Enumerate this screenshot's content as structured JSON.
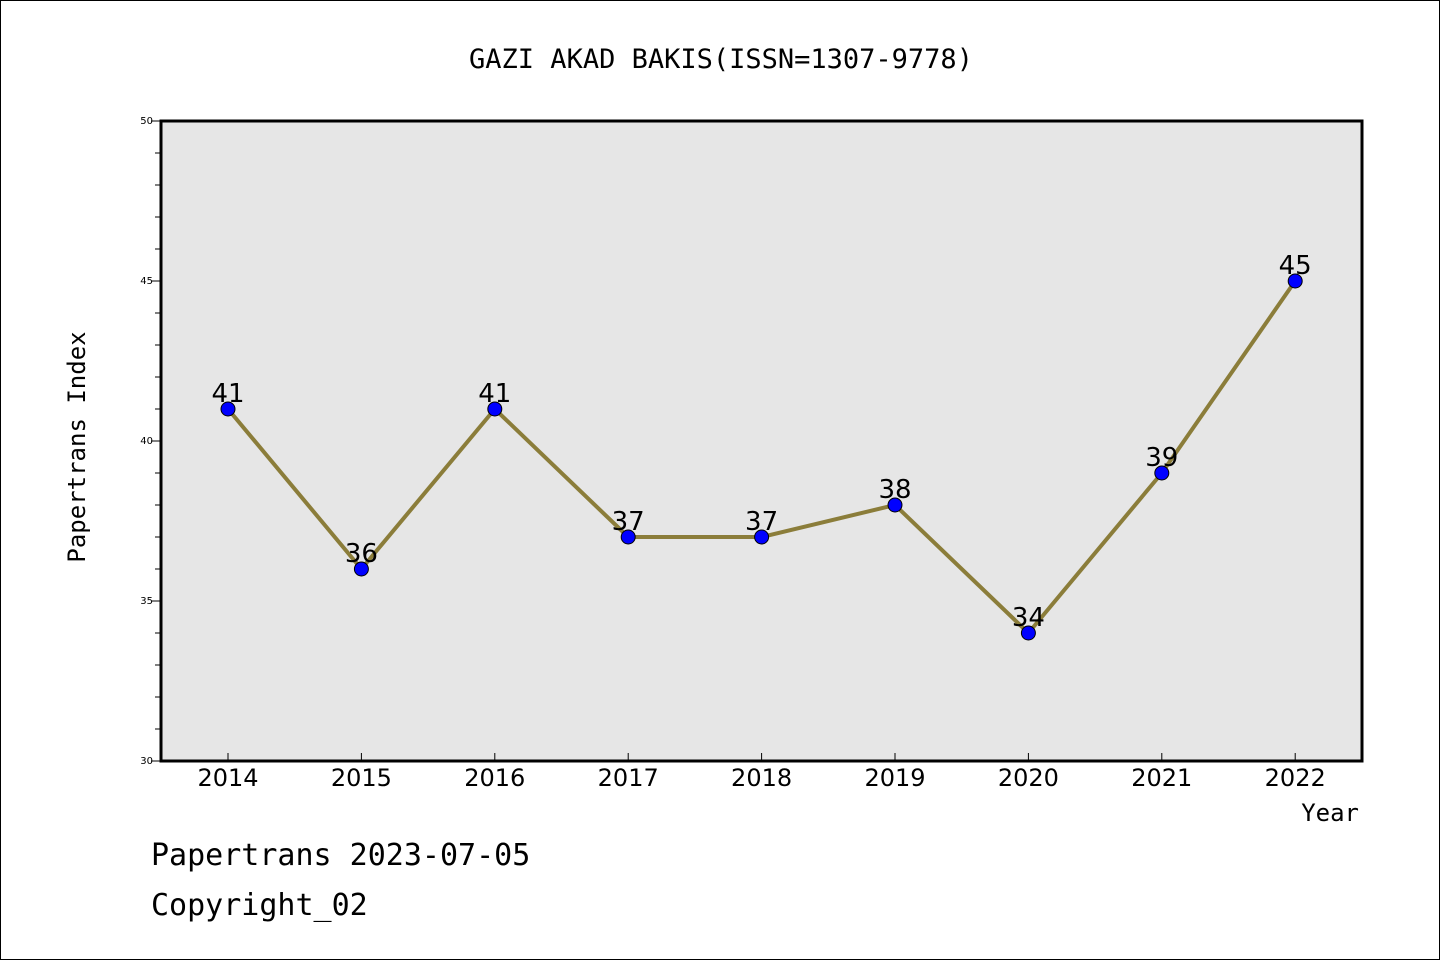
{
  "chart_data": {
    "type": "line",
    "title": "GAZI AKAD BAKIS(ISSN=1307-9778)",
    "xlabel": "Year",
    "ylabel": "Papertrans Index",
    "categories": [
      "2014",
      "2015",
      "2016",
      "2017",
      "2018",
      "2019",
      "2020",
      "2021",
      "2022"
    ],
    "series": [
      {
        "values": [
          41,
          36,
          41,
          37,
          37,
          38,
          34,
          39,
          45
        ]
      }
    ],
    "ylim": [
      30,
      50
    ],
    "yticks": [
      "30",
      "35",
      "40",
      "45",
      "50"
    ],
    "data_labels": [
      "41",
      "36",
      "41",
      "37",
      "37",
      "38",
      "34",
      "39",
      "45"
    ],
    "grid": false,
    "line_color": "#8b7d3a",
    "marker_color": "#0000ff",
    "plot_background": "#e6e6e6"
  },
  "footer": {
    "line1": "Papertrans 2023-07-05",
    "line2": "Copyright_02"
  }
}
